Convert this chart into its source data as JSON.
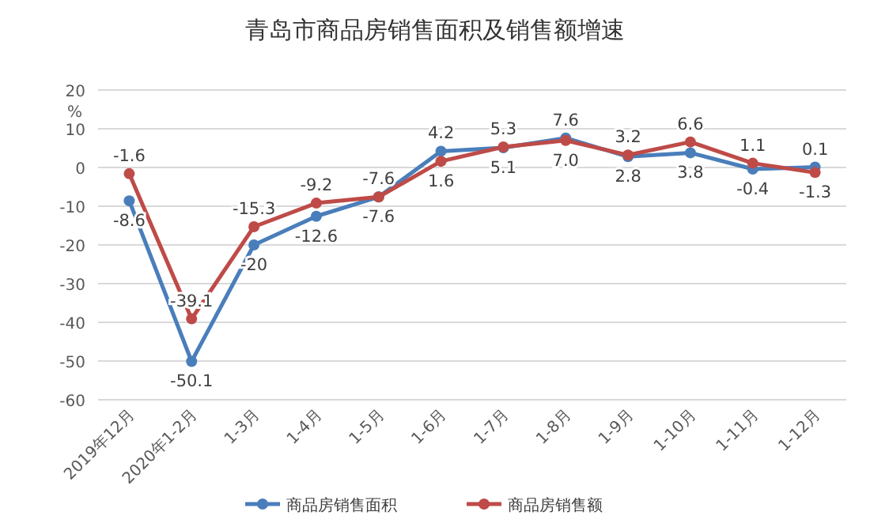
{
  "chart_data": {
    "type": "line",
    "title": "青岛市商品房销售面积及销售额增速",
    "ylabel": "%",
    "categories": [
      "2019年12月",
      "2020年1-2月",
      "1-3月",
      "1-4月",
      "1-5月",
      "1-6月",
      "1-7月",
      "1-8月",
      "1-9月",
      "1-10月",
      "1-11月",
      "1-12月"
    ],
    "series": [
      {
        "name": "商品房销售面积",
        "color": "#4a7ebb",
        "values": [
          -8.6,
          -50.1,
          -20,
          -12.6,
          -7.6,
          4.2,
          5.1,
          7.6,
          2.8,
          3.8,
          -0.4,
          0.1
        ],
        "value_labels": [
          "-8.6",
          "-50.1",
          "-20",
          "-12.6",
          "-7.6",
          "4.2",
          "5.1",
          "7.6",
          "2.8",
          "3.8",
          "-0.4",
          "0.1"
        ]
      },
      {
        "name": "商品房销售额",
        "color": "#be4b48",
        "values": [
          -1.6,
          -39.1,
          -15.3,
          -9.2,
          -7.6,
          1.6,
          5.3,
          7.0,
          3.2,
          6.6,
          1.1,
          -1.3
        ],
        "value_labels": [
          "-1.6",
          "-39.1",
          "-15.3",
          "-9.2",
          "-7.6",
          "1.6",
          "5.3",
          "7.0",
          "3.2",
          "6.6",
          "1.1",
          "-1.3"
        ]
      }
    ],
    "ylim": [
      -60,
      20
    ],
    "yticks": [
      -60,
      -50,
      -40,
      -30,
      -20,
      -10,
      0,
      10,
      20
    ],
    "grid": "y",
    "legend": "bottom",
    "marker": "circle",
    "line_style": "solid"
  }
}
